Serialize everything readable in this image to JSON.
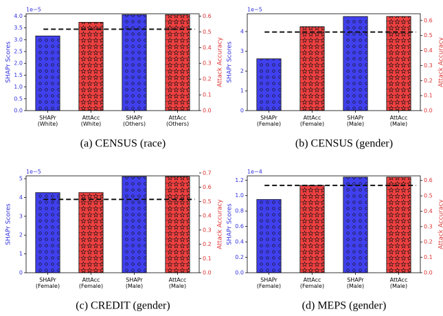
{
  "chart_data": [
    {
      "type": "bar",
      "caption": "(a) CENSUS (race)",
      "offset_label": "1e−5",
      "ylabel": "SHAPr Scores",
      "y2label": "Attack Accuracy",
      "categories": [
        "SHAPr\n(White)",
        "AttAcc\n(White)",
        "SHAPr\n(Others)",
        "AttAcc\n(Others)"
      ],
      "series": [
        {
          "name": "SHAPr",
          "color": "#4040ee",
          "hatch": "o",
          "axis": "y",
          "values": [
            3.16,
            null,
            4.06,
            null
          ]
        },
        {
          "name": "AttAcc",
          "color": "#ee4040",
          "hatch": "*",
          "axis": "y2",
          "values": [
            null,
            0.561,
            null,
            0.609
          ]
        }
      ],
      "hline": {
        "value": 0.517,
        "axis": "y2"
      },
      "ylim": [
        0,
        4.1
      ],
      "yticks": [
        {
          "value": 0,
          "label": "0.0"
        },
        0.5,
        {
          "value": 1,
          "label": "1.0"
        },
        1.5,
        {
          "value": 2,
          "label": "2.0"
        },
        2.5,
        {
          "value": 3,
          "label": "3.0"
        },
        3.5,
        {
          "value": 4,
          "label": "4.0"
        }
      ],
      "y2lim": [
        0,
        0.615
      ],
      "y2ticks": [
        {
          "value": 0,
          "label": "0.0"
        },
        0.1,
        0.2,
        0.3,
        0.4,
        0.5,
        0.6
      ]
    },
    {
      "type": "bar",
      "caption": "(b) CENSUS (gender)",
      "offset_label": "1e−5",
      "ylabel": "SHAPr Scores",
      "y2label": "Attack Accuracy",
      "categories": [
        "SHAPr\n(Female)",
        "AttAcc\n(Female)",
        "SHAPr\n(Male)",
        "AttAcc\n(Male)"
      ],
      "series": [
        {
          "name": "SHAPr",
          "color": "#4040ee",
          "hatch": "o",
          "axis": "y",
          "values": [
            2.62,
            null,
            4.76,
            null
          ]
        },
        {
          "name": "AttAcc",
          "color": "#ee4040",
          "hatch": "*",
          "axis": "y2",
          "values": [
            null,
            0.559,
            null,
            0.627
          ]
        }
      ],
      "hline": {
        "value": 0.523,
        "axis": "y2"
      },
      "ylim": [
        0,
        4.9
      ],
      "yticks": [
        0,
        1,
        2,
        3,
        4
      ],
      "y2lim": [
        0,
        0.645
      ],
      "y2ticks": [
        {
          "value": 0,
          "label": "0.0"
        },
        0.1,
        0.2,
        0.3,
        0.4,
        0.5,
        0.6
      ]
    },
    {
      "type": "bar",
      "caption": "(c) CREDIT (gender)",
      "offset_label": "1e−5",
      "ylabel": "SHAPr Scores",
      "y2label": "Attack Accuracy",
      "categories": [
        "SHAPr\n(Female)",
        "AttAcc\n(Female)",
        "SHAPr\n(Male)",
        "AttAcc\n(Male)"
      ],
      "series": [
        {
          "name": "SHAPr",
          "color": "#4040ee",
          "hatch": "o",
          "axis": "y",
          "values": [
            4.26,
            null,
            5.11,
            null
          ]
        },
        {
          "name": "AttAcc",
          "color": "#ee4040",
          "hatch": "*",
          "axis": "y2",
          "values": [
            null,
            0.563,
            null,
            0.675
          ]
        }
      ],
      "hline": {
        "value": 0.515,
        "axis": "y2"
      },
      "ylim": [
        0,
        5.15
      ],
      "yticks": [
        0,
        1,
        2,
        3,
        4,
        5
      ],
      "y2lim": [
        0,
        0.68
      ],
      "y2ticks": [
        {
          "value": 0,
          "label": "0.0"
        },
        0.1,
        0.2,
        0.3,
        0.4,
        0.5,
        0.6,
        0.7
      ]
    },
    {
      "type": "bar",
      "caption": "(d) MEPS (gender)",
      "offset_label": "1e−4",
      "ylabel": "SHAPr Scores",
      "y2label": "Attack Accuracy",
      "categories": [
        "SHAPr\n(Female)",
        "AttAcc\n(Female)",
        "SHAPr\n(Male)",
        "AttAcc\n(Male)"
      ],
      "series": [
        {
          "name": "SHAPr",
          "color": "#4040ee",
          "hatch": "o",
          "axis": "y",
          "values": [
            0.95,
            null,
            1.24,
            null
          ]
        },
        {
          "name": "AttAcc",
          "color": "#ee4040",
          "hatch": "*",
          "axis": "y2",
          "values": [
            null,
            0.568,
            null,
            0.622
          ]
        }
      ],
      "hline": {
        "value": 0.568,
        "axis": "y2"
      },
      "ylim": [
        0,
        1.256
      ],
      "yticks": [
        {
          "value": 0,
          "label": "0.0"
        },
        0.2,
        0.4,
        0.6,
        0.8,
        {
          "value": 1,
          "label": "1.0"
        },
        1.2
      ],
      "y2lim": [
        0,
        0.63
      ],
      "y2ticks": [
        {
          "value": 0,
          "label": "0.0"
        },
        0.1,
        0.2,
        0.3,
        0.4,
        0.5,
        0.6
      ]
    }
  ]
}
